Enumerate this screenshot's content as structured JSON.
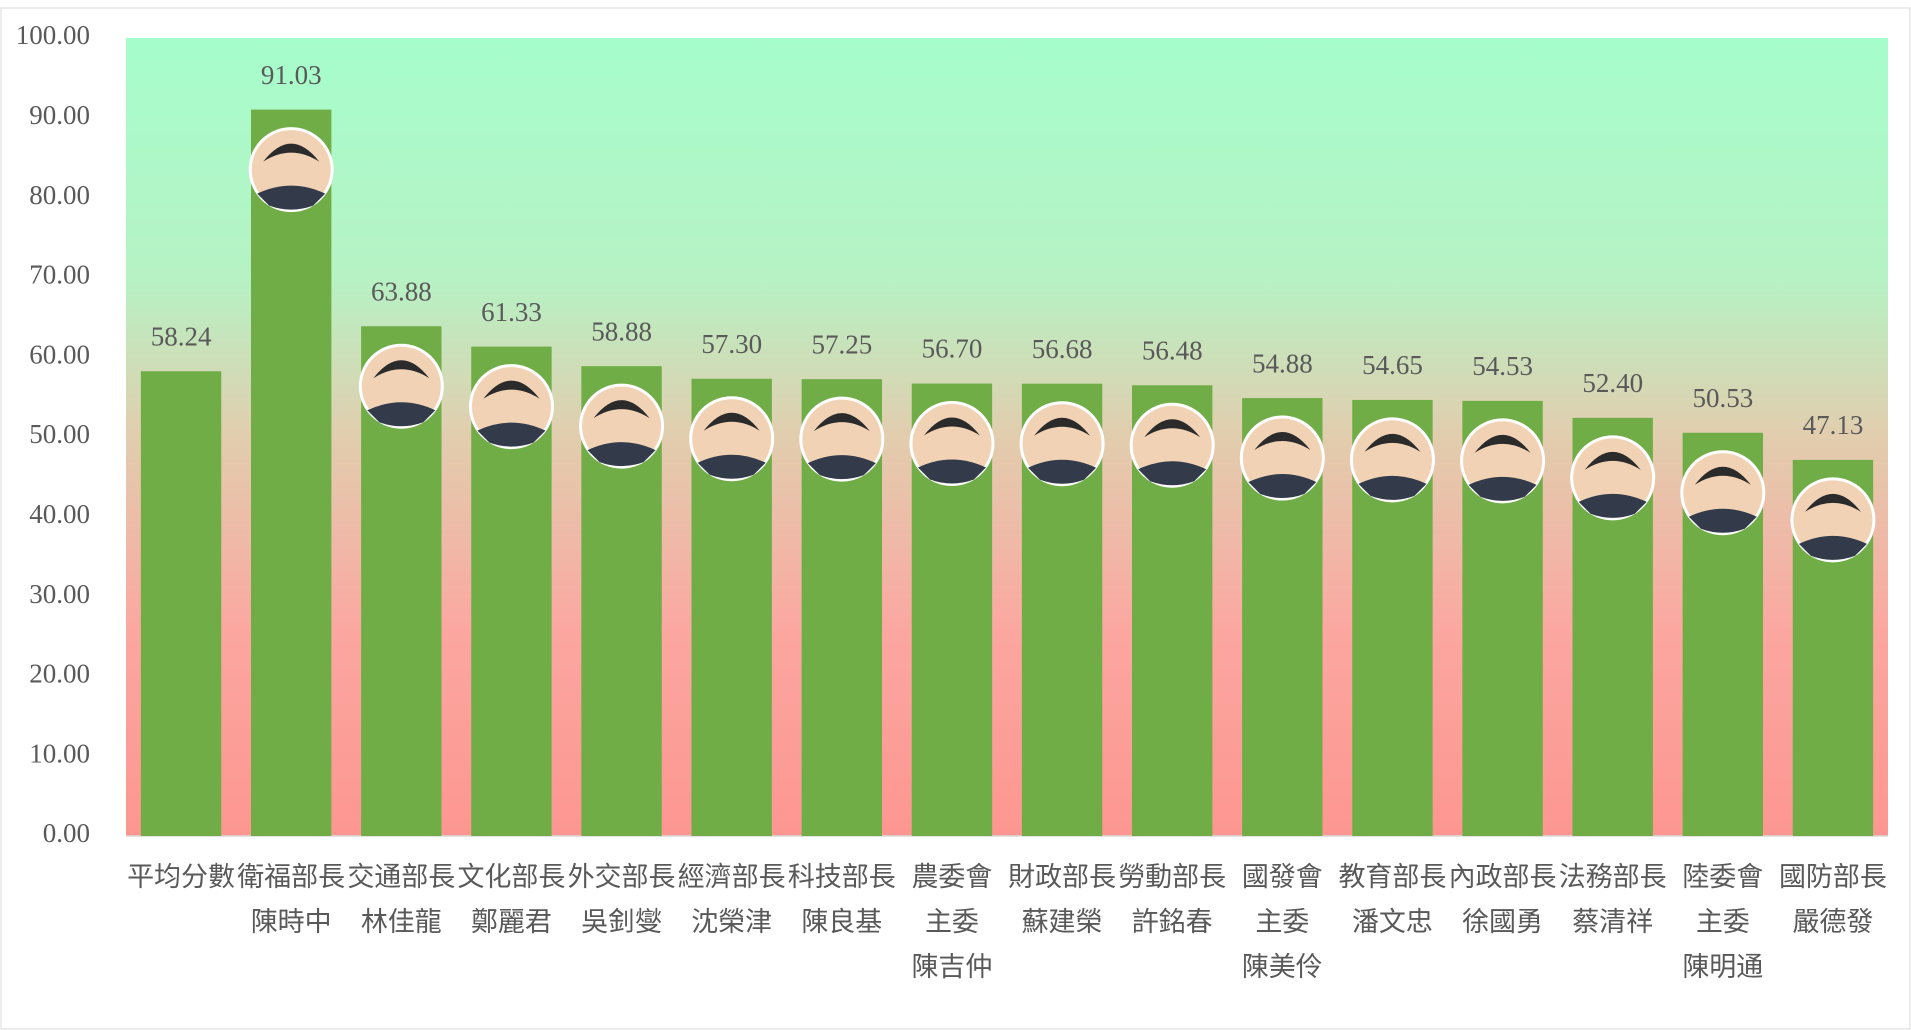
{
  "chart_data": {
    "type": "bar",
    "categories": [
      [
        "平均分數"
      ],
      [
        "衛福部長",
        "陳時中"
      ],
      [
        "交通部長",
        "林佳龍"
      ],
      [
        "文化部長",
        "鄭麗君"
      ],
      [
        "外交部長",
        "吳釗燮"
      ],
      [
        "經濟部長",
        "沈榮津"
      ],
      [
        "科技部長",
        "陳良基"
      ],
      [
        "農委會",
        "主委",
        "陳吉仲"
      ],
      [
        "財政部長",
        "蘇建榮"
      ],
      [
        "勞動部長",
        "許銘春"
      ],
      [
        "國發會",
        "主委",
        "陳美伶"
      ],
      [
        "教育部長",
        "潘文忠"
      ],
      [
        "內政部長",
        "徐國勇"
      ],
      [
        "法務部長",
        "蔡清祥"
      ],
      [
        "陸委會",
        "主委",
        "陳明通"
      ],
      [
        "國防部長",
        "嚴德發"
      ]
    ],
    "values": [
      58.24,
      91.03,
      63.88,
      61.33,
      58.88,
      57.3,
      57.25,
      56.7,
      56.68,
      56.48,
      54.88,
      54.65,
      54.53,
      52.4,
      50.53,
      47.13
    ],
    "value_labels": [
      "58.24",
      "91.03",
      "63.88",
      "61.33",
      "58.88",
      "57.30",
      "57.25",
      "56.70",
      "56.68",
      "56.48",
      "54.88",
      "54.65",
      "54.53",
      "52.40",
      "50.53",
      "47.13"
    ],
    "color": "#70ad47",
    "ylim": [
      0,
      100
    ],
    "yticks": [
      {
        "value": 0,
        "label": "0.00"
      },
      {
        "value": 10,
        "label": "10.00"
      },
      {
        "value": 20,
        "label": "20.00"
      },
      {
        "value": 30,
        "label": "30.00"
      },
      {
        "value": 40,
        "label": "40.00"
      },
      {
        "value": 50,
        "label": "50.00"
      },
      {
        "value": 60,
        "label": "60.00"
      },
      {
        "value": 70,
        "label": "70.00"
      },
      {
        "value": 80,
        "label": "80.00"
      },
      {
        "value": 90,
        "label": "90.00"
      },
      {
        "value": 100,
        "label": "100.00"
      }
    ],
    "grid": false
  }
}
